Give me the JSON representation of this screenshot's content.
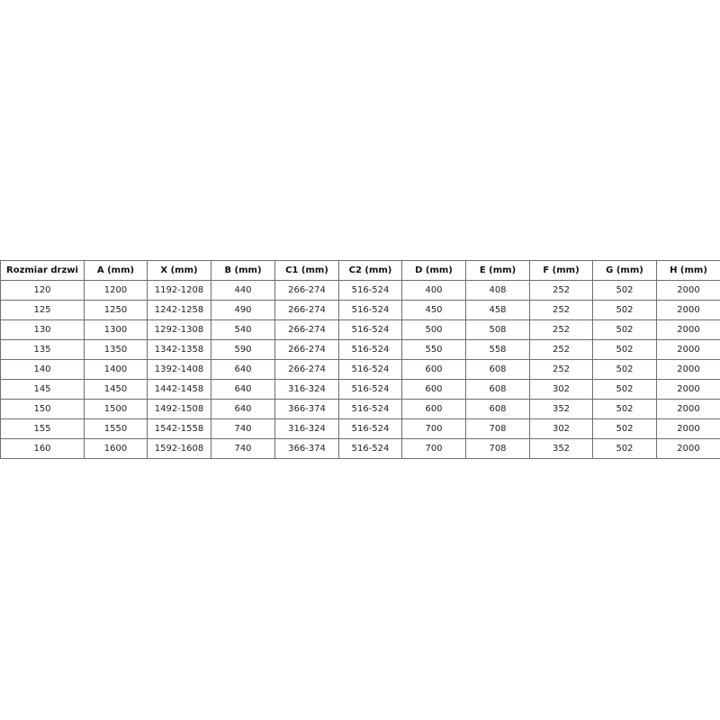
{
  "table": {
    "headers": [
      "Rozmiar drzwi",
      "A (mm)",
      "X (mm)",
      "B (mm)",
      "C1 (mm)",
      "C2 (mm)",
      "D (mm)",
      "E (mm)",
      "F (mm)",
      "G (mm)",
      "H (mm)"
    ],
    "rows": [
      [
        "120",
        "1200",
        "1192-1208",
        "440",
        "266-274",
        "516-524",
        "400",
        "408",
        "252",
        "502",
        "2000"
      ],
      [
        "125",
        "1250",
        "1242-1258",
        "490",
        "266-274",
        "516-524",
        "450",
        "458",
        "252",
        "502",
        "2000"
      ],
      [
        "130",
        "1300",
        "1292-1308",
        "540",
        "266-274",
        "516-524",
        "500",
        "508",
        "252",
        "502",
        "2000"
      ],
      [
        "135",
        "1350",
        "1342-1358",
        "590",
        "266-274",
        "516-524",
        "550",
        "558",
        "252",
        "502",
        "2000"
      ],
      [
        "140",
        "1400",
        "1392-1408",
        "640",
        "266-274",
        "516-524",
        "600",
        "608",
        "252",
        "502",
        "2000"
      ],
      [
        "145",
        "1450",
        "1442-1458",
        "640",
        "316-324",
        "516-524",
        "600",
        "608",
        "302",
        "502",
        "2000"
      ],
      [
        "150",
        "1500",
        "1492-1508",
        "640",
        "366-374",
        "516-524",
        "600",
        "608",
        "352",
        "502",
        "2000"
      ],
      [
        "155",
        "1550",
        "1542-1558",
        "740",
        "316-324",
        "516-524",
        "700",
        "708",
        "302",
        "502",
        "2000"
      ],
      [
        "160",
        "1600",
        "1592-1608",
        "740",
        "366-374",
        "516-524",
        "700",
        "708",
        "352",
        "502",
        "2000"
      ]
    ]
  }
}
